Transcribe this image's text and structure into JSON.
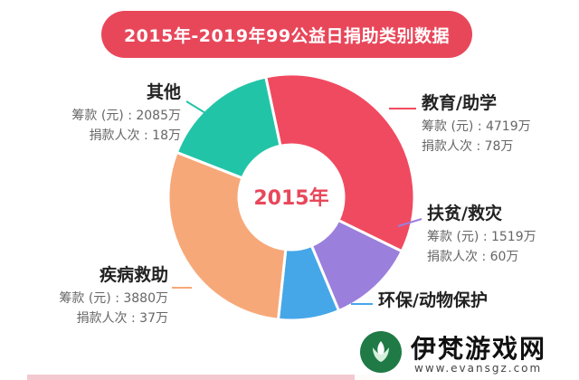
{
  "banner": {
    "title": "2015年-2019年99公益日捐助类别数据"
  },
  "chart_data": {
    "type": "pie",
    "variant": "donut",
    "center_label": "2015年",
    "slices": [
      {
        "key": "edu",
        "name": "教育/助学",
        "amount_text": "筹款 (元) : 4719万",
        "donors_text": "捐款人次 : 78万",
        "amount_wan": 4719,
        "donors_wan": 78,
        "color": "#f04a60"
      },
      {
        "key": "poverty",
        "name": "扶贫/救灾",
        "amount_text": "筹款 (元) : 1519万",
        "donors_text": "捐款人次 : 60万",
        "amount_wan": 1519,
        "donors_wan": 60,
        "color": "#9b7fdc"
      },
      {
        "key": "env",
        "name": "环保/动物保护",
        "amount_text": "",
        "donors_text": "",
        "amount_wan": 1062,
        "donors_wan": null,
        "color": "#45a7e8"
      },
      {
        "key": "disease",
        "name": "疾病救助",
        "amount_text": "筹款 (元) : 3880万",
        "donors_text": "捐款人次 : 37万",
        "amount_wan": 3880,
        "donors_wan": 37,
        "color": "#f7a878"
      },
      {
        "key": "other",
        "name": "其他",
        "amount_text": "筹款 (元) : 2085万",
        "donors_text": "捐款人次 : 18万",
        "amount_wan": 2085,
        "donors_wan": 18,
        "color": "#22c4a7"
      }
    ]
  },
  "watermark": {
    "name": "伊梵游戏网",
    "url": "www.evansgz.com"
  }
}
